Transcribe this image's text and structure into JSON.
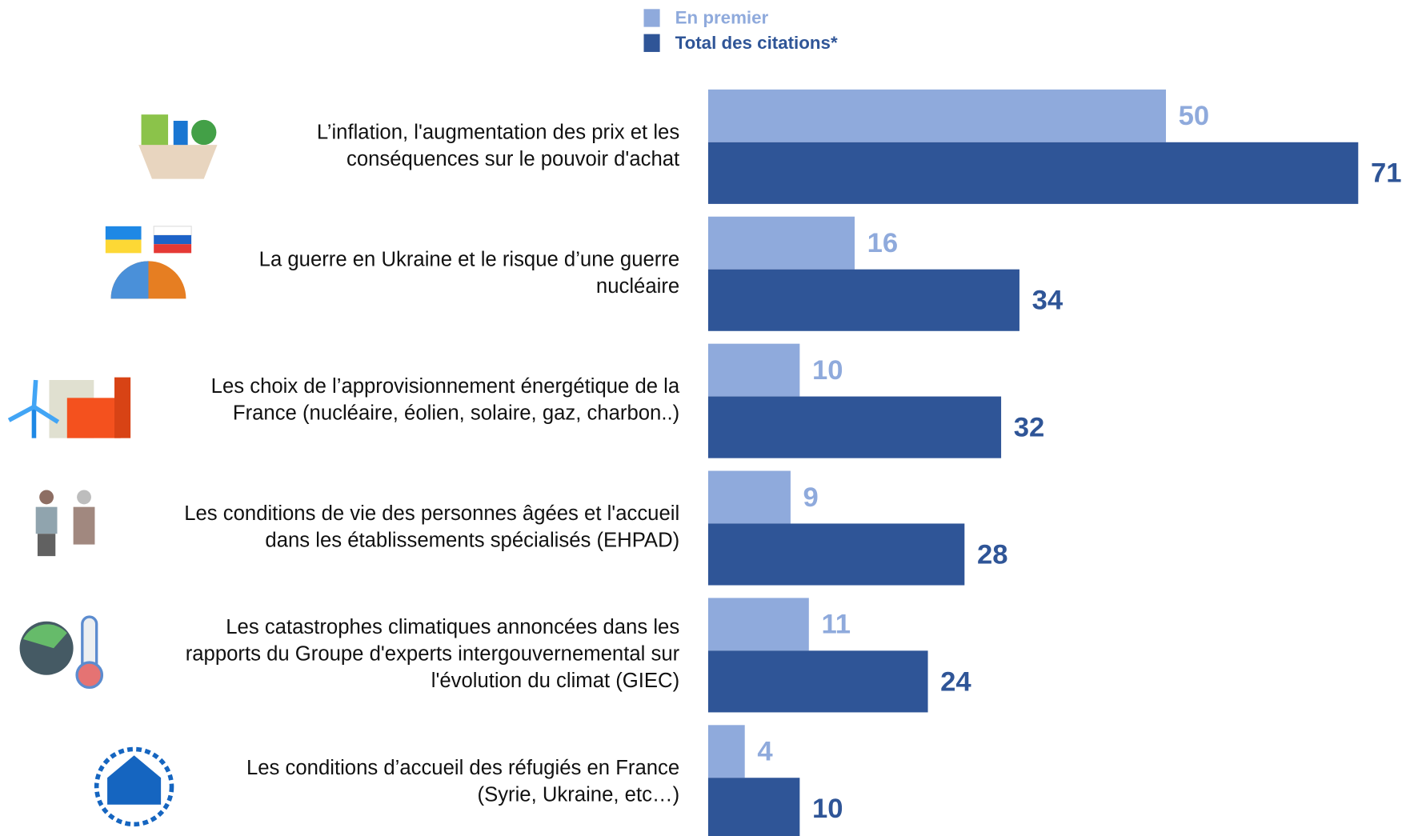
{
  "chart_data": {
    "type": "hbar_grouped",
    "categories": [
      [
        "L’inflation, l'augmentation des prix et les",
        "conséquences sur le pouvoir d'achat"
      ],
      [
        "La guerre en Ukraine et le risque d’une guerre",
        "nucléaire"
      ],
      [
        "Les choix de l’approvisionnement énergétique de la",
        "France (nucléaire, éolien, solaire, gaz, charbon..)"
      ],
      [
        "Les conditions de vie des personnes âgées et l'accueil",
        "dans les établissements spécialisés (EHPAD)"
      ],
      [
        "Les catastrophes climatiques annoncées dans les",
        "rapports du Groupe d'experts intergouvernemental sur",
        "l'évolution du climat (GIEC)"
      ],
      [
        "Les conditions d’accueil des réfugiés en France",
        "(Syrie, Ukraine, etc…)"
      ]
    ],
    "series": [
      {
        "name": "En premier",
        "color": "#8faadc",
        "values": [
          50,
          16,
          10,
          9,
          11,
          4
        ]
      },
      {
        "name": "Total des citations*",
        "color": "#2f5597",
        "values": [
          71,
          34,
          32,
          28,
          24,
          10
        ]
      }
    ]
  }
}
